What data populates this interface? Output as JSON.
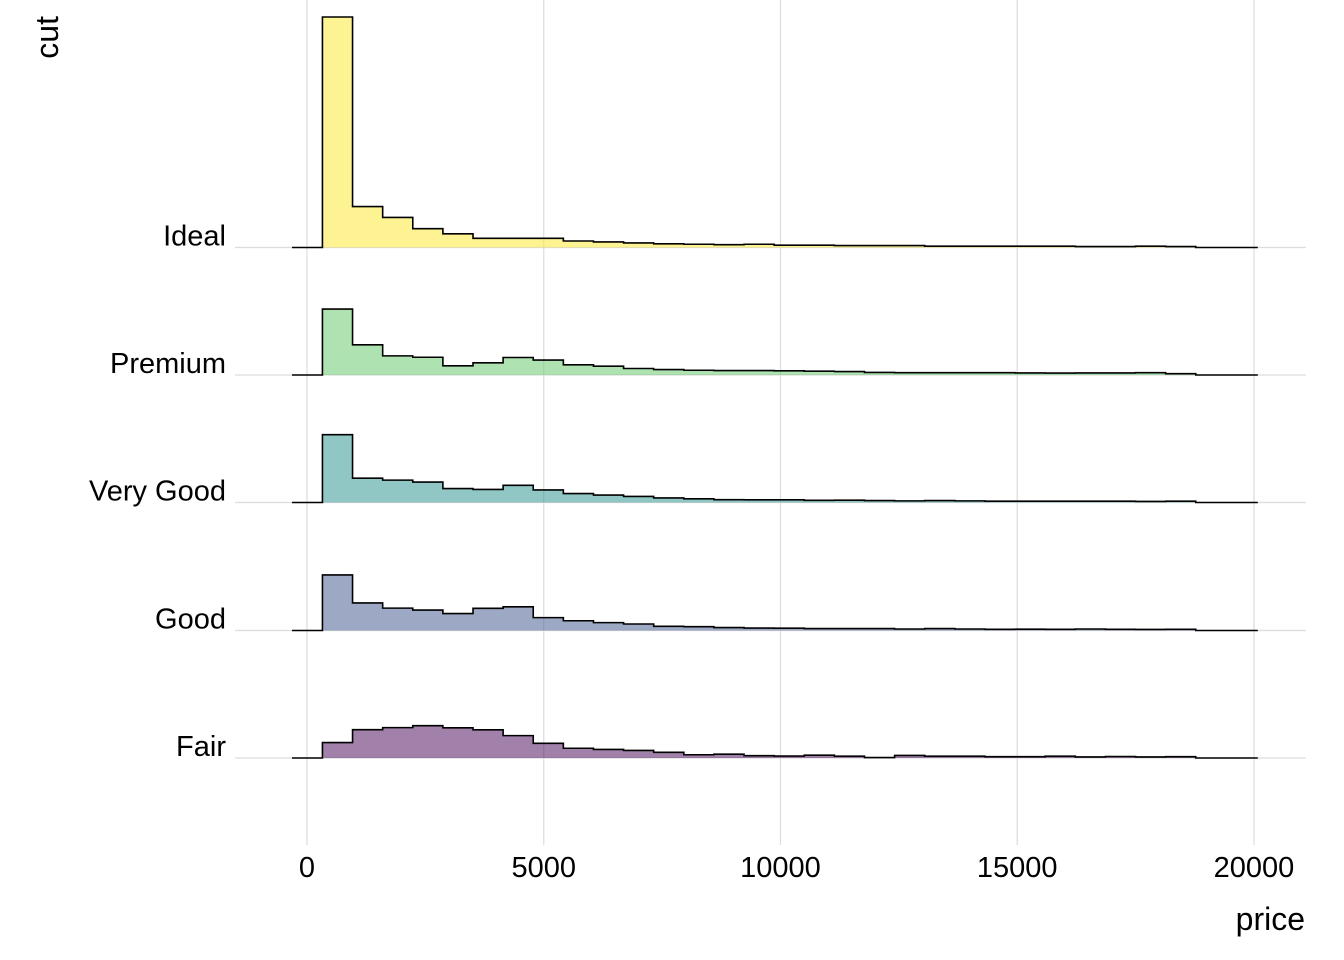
{
  "chart_data": {
    "type": "ridgeline-histogram",
    "xlabel": "price",
    "ylabel": "cut",
    "xlim": [
      -500,
      21000
    ],
    "x_ticks": [
      0,
      5000,
      10000,
      15000,
      20000
    ],
    "x_tick_labels": [
      "0",
      "5000",
      "10000",
      "15000",
      "20000"
    ],
    "grid": true,
    "bin_edges": [
      326,
      962,
      1598,
      2234,
      2870,
      3506,
      4142,
      4778,
      5414,
      6050,
      6686,
      7322,
      7958,
      8594,
      9230,
      9866,
      10502,
      11138,
      11774,
      12410,
      13046,
      13682,
      14318,
      14954,
      15590,
      16226,
      16862,
      17498,
      18134,
      18770
    ],
    "x_end": 20080,
    "density_scale_max": 0.0017,
    "series": [
      {
        "name": "Fair",
        "color": "#440154",
        "values": [
          0.000114,
          0.000209,
          0.000224,
          0.000238,
          0.000223,
          0.000208,
          0.000165,
          0.000108,
          7.2e-05,
          6.3e-05,
          5.6e-05,
          4.2e-05,
          2.4e-05,
          2.8e-05,
          1.7e-05,
          1.4e-05,
          2.1e-05,
          1.3e-05,
          3e-06,
          1.9e-05,
          1.3e-05,
          1.3e-05,
          1e-05,
          1e-05,
          1.3e-05,
          8e-06,
          1.1e-05,
          8e-06,
          1e-05
        ]
      },
      {
        "name": "Good",
        "color": "#3B528B",
        "values": [
          0.00041,
          0.000203,
          0.000165,
          0.000151,
          0.000125,
          0.000164,
          0.000175,
          9.5e-05,
          7.2e-05,
          5.8e-05,
          4.8e-05,
          3.1e-05,
          2.8e-05,
          2.2e-05,
          1.8e-05,
          1.7e-05,
          1.4e-05,
          1.4e-05,
          1.4e-05,
          1.1e-05,
          1.4e-05,
          1.1e-05,
          9e-06,
          1e-05,
          9e-06,
          1.1e-05,
          9e-06,
          8e-06,
          9e-06
        ]
      },
      {
        "name": "Very Good",
        "color": "#21908C",
        "values": [
          0.0005,
          0.000179,
          0.000165,
          0.000151,
          0.000103,
          9.6e-05,
          0.000127,
          9.3e-05,
          6.6e-05,
          5.5e-05,
          4.5e-05,
          3.4e-05,
          2.7e-05,
          2.1e-05,
          2e-05,
          2e-05,
          1.6e-05,
          1.7e-05,
          1.4e-05,
          1.2e-05,
          1.4e-05,
          1.2e-05,
          1e-05,
          1e-05,
          1e-05,
          1e-05,
          1e-05,
          8e-06,
          1e-05
        ]
      },
      {
        "name": "Premium",
        "color": "#5DC863",
        "values": [
          0.000486,
          0.000223,
          0.000141,
          0.000131,
          6.8e-05,
          9e-05,
          0.000129,
          0.00011,
          7.5e-05,
          6.5e-05,
          4.8e-05,
          4e-05,
          3.5e-05,
          3.3e-05,
          3.3e-05,
          3.1e-05,
          2.8e-05,
          2.5e-05,
          1.9e-05,
          1.7e-05,
          1.7e-05,
          1.7e-05,
          1.7e-05,
          1.5e-05,
          1.4e-05,
          1.5e-05,
          1.5e-05,
          1.7e-05,
          1e-05
        ]
      },
      {
        "name": "Ideal",
        "color": "#FDE725",
        "values": [
          0.0017,
          0.000302,
          0.000222,
          0.000139,
          0.000101,
          6.8e-05,
          6.8e-05,
          6.8e-05,
          4.8e-05,
          4.1e-05,
          3.4e-05,
          2.7e-05,
          2.4e-05,
          2.1e-05,
          2.4e-05,
          1.7e-05,
          1.7e-05,
          1.4e-05,
          1.4e-05,
          1.4e-05,
          1e-05,
          1e-05,
          1e-05,
          1e-05,
          1e-05,
          7e-06,
          7e-06,
          1e-05,
          7e-06
        ]
      }
    ]
  }
}
